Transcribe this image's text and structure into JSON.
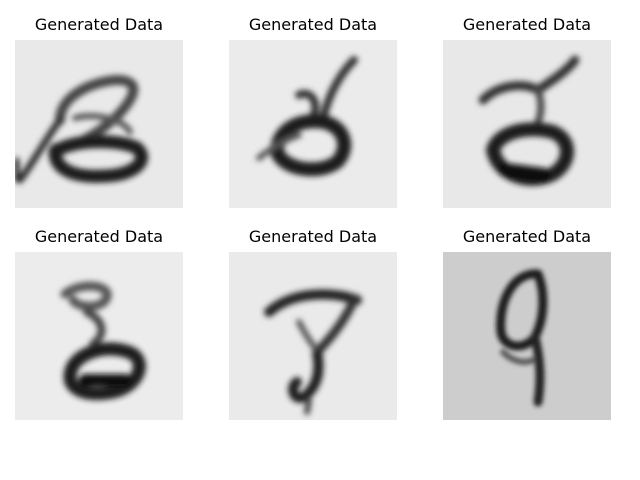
{
  "figure": {
    "panels": [
      {
        "title": "Generated Data",
        "background": "#e9e9e9"
      },
      {
        "title": "Generated Data",
        "background": "#ebebeb"
      },
      {
        "title": "Generated Data",
        "background": "#e8e8e8"
      },
      {
        "title": "Generated Data",
        "background": "#ececec"
      },
      {
        "title": "Generated Data",
        "background": "#eaeaea"
      },
      {
        "title": "Generated Data",
        "background": "#cdcdcd"
      }
    ]
  }
}
